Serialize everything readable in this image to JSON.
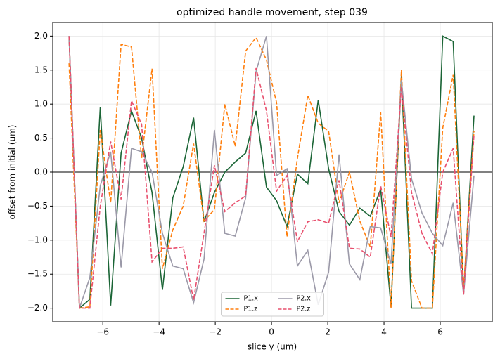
{
  "chart_data": {
    "type": "line",
    "title": "optimized handle movement, step 039",
    "xlabel": "slice y (um)",
    "ylabel": "offset from initial (um)",
    "x": [
      -7.2,
      -6.83,
      -6.46,
      -6.09,
      -5.72,
      -5.35,
      -4.98,
      -4.62,
      -4.25,
      -3.88,
      -3.51,
      -3.14,
      -2.77,
      -2.4,
      -2.03,
      -1.66,
      -1.29,
      -0.92,
      -0.55,
      -0.18,
      0.18,
      0.55,
      0.92,
      1.29,
      1.66,
      2.03,
      2.4,
      2.77,
      3.14,
      3.51,
      3.88,
      4.25,
      4.62,
      4.98,
      5.35,
      5.72,
      6.09,
      6.46,
      6.83,
      7.2
    ],
    "series": [
      {
        "name": "P1.x",
        "color": "#1b6536",
        "linestyle": "solid",
        "values": [
          2.0,
          -2.0,
          -1.87,
          0.96,
          -1.96,
          0.28,
          0.9,
          0.5,
          -0.3,
          -1.73,
          -0.38,
          0.08,
          0.8,
          -0.73,
          -0.3,
          0.0,
          0.15,
          0.28,
          0.9,
          -0.22,
          -0.42,
          -0.8,
          -0.03,
          -0.17,
          1.06,
          0.05,
          -0.58,
          -0.78,
          -0.53,
          -0.65,
          -0.25,
          -1.98,
          1.42,
          -2.0,
          -2.0,
          -2.0,
          2.0,
          1.92,
          -1.78,
          0.83
        ]
      },
      {
        "name": "P1.z",
        "color": "#ff7f0e",
        "linestyle": "dashed",
        "values": [
          1.6,
          -2.0,
          -1.98,
          0.62,
          -0.45,
          1.88,
          1.84,
          0.2,
          1.52,
          -1.42,
          -0.85,
          -0.5,
          0.42,
          -0.72,
          -0.55,
          1.0,
          0.38,
          1.78,
          1.98,
          1.65,
          1.02,
          -0.95,
          0.2,
          1.13,
          0.72,
          0.6,
          -0.45,
          0.0,
          -0.72,
          -1.1,
          0.88,
          -2.0,
          1.5,
          -1.6,
          -2.0,
          -2.0,
          0.65,
          1.43,
          -1.7,
          0.6
        ]
      },
      {
        "name": "P2.x",
        "color": "#9b99a8",
        "linestyle": "solid",
        "values": [
          2.0,
          -2.0,
          -1.55,
          -0.2,
          0.3,
          -1.4,
          0.35,
          0.3,
          0.0,
          -0.9,
          -1.38,
          -1.42,
          -1.92,
          -1.28,
          0.62,
          -0.9,
          -0.94,
          -0.38,
          1.48,
          2.0,
          -0.05,
          0.05,
          -1.38,
          -1.15,
          -1.95,
          -1.47,
          0.26,
          -1.35,
          -1.58,
          -0.8,
          -0.82,
          -1.35,
          1.35,
          -0.1,
          -0.6,
          -0.9,
          -1.08,
          -0.45,
          -1.8,
          -0.05
        ]
      },
      {
        "name": "P2.z",
        "color": "#e8506e",
        "linestyle": "dashed",
        "values": [
          2.0,
          -2.0,
          -2.0,
          -0.5,
          0.45,
          -0.4,
          1.05,
          0.7,
          -1.32,
          -1.12,
          -1.12,
          -1.1,
          -1.88,
          -0.9,
          0.1,
          -0.58,
          -0.45,
          -0.35,
          1.53,
          0.9,
          -0.28,
          -0.05,
          -1.02,
          -0.73,
          -0.7,
          -0.75,
          -0.12,
          -1.12,
          -1.13,
          -1.25,
          -0.2,
          -0.95,
          1.25,
          -0.3,
          -0.9,
          -1.2,
          0.0,
          0.35,
          -1.8,
          0.55
        ]
      }
    ],
    "xlim": [
      -7.78,
      7.85
    ],
    "ylim": [
      -2.2,
      2.2
    ],
    "xticks": [
      {
        "value": -6,
        "label": "−6"
      },
      {
        "value": -4,
        "label": "−4"
      },
      {
        "value": -2,
        "label": "−2"
      },
      0,
      2,
      4,
      6
    ],
    "yticks": [
      {
        "value": -2,
        "label": "−2.0"
      },
      {
        "value": -1.5,
        "label": "−1.5"
      },
      {
        "value": -1,
        "label": "−1.0"
      },
      {
        "value": -0.5,
        "label": "−0.5"
      },
      {
        "value": 0,
        "label": "0.0"
      },
      0.5,
      {
        "value": 1,
        "label": "1.0"
      },
      1.5,
      {
        "value": 2,
        "label": "2.0"
      }
    ],
    "hline": 0,
    "grid": true,
    "legend": "lower center"
  }
}
